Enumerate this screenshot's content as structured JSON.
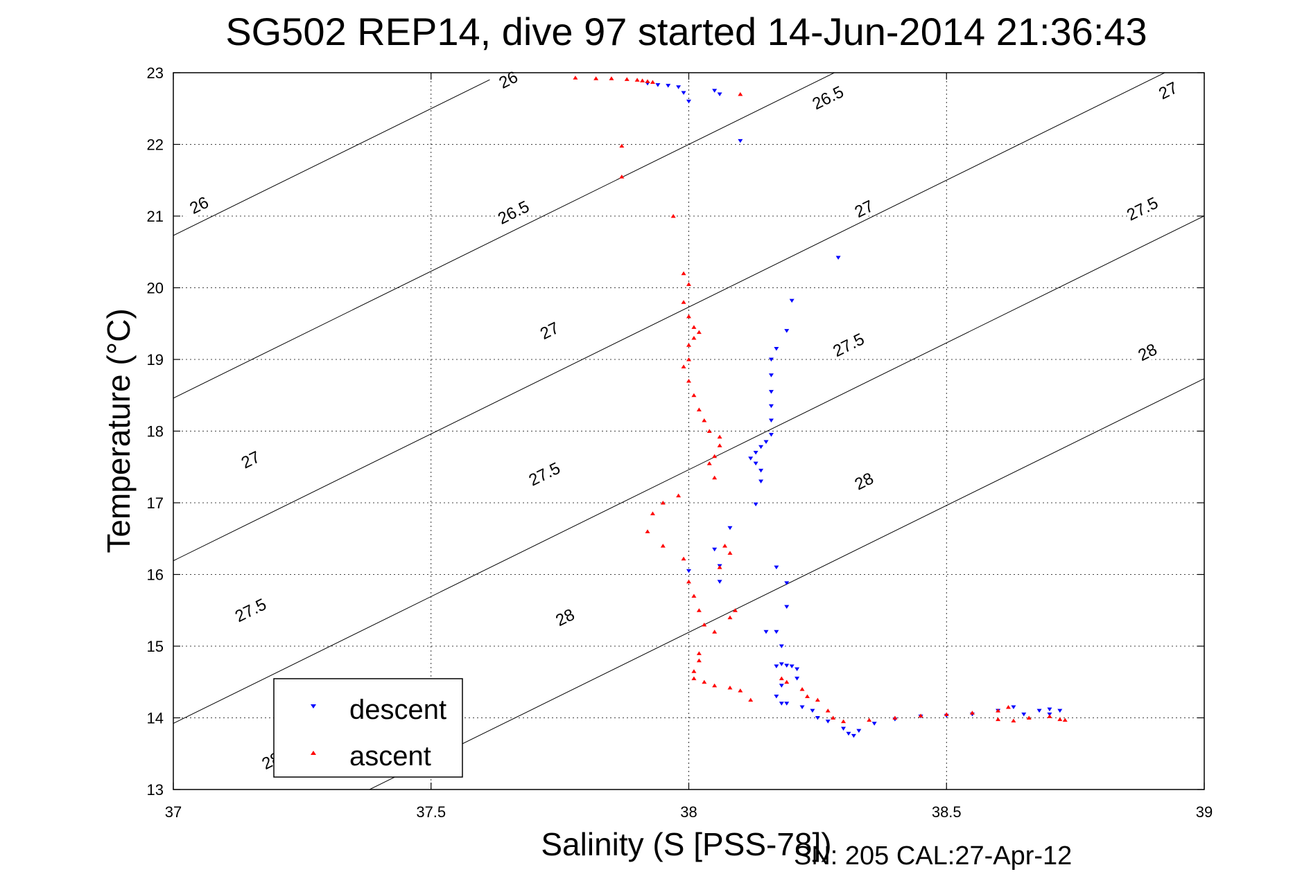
{
  "chart_data": {
    "type": "scatter",
    "title": "SG502 REP14, dive 97 started 14-Jun-2014 21:36:43",
    "xlabel": "Salinity (S [PSS-78])",
    "ylabel": "Temperature (°C)",
    "xlim": [
      37,
      39
    ],
    "ylim": [
      13,
      23
    ],
    "xticks": [
      "37",
      "37.5",
      "38",
      "38.5",
      "39"
    ],
    "yticks": [
      "13",
      "14",
      "15",
      "16",
      "17",
      "18",
      "19",
      "20",
      "21",
      "22",
      "23"
    ],
    "grid": true,
    "legend_position": "bottom-left",
    "isopycnals": [
      {
        "sigma": 26,
        "label": "26",
        "label_positions": [
          [
            37.65,
            22.9
          ],
          [
            37.05,
            21.15
          ]
        ]
      },
      {
        "sigma": 26.5,
        "label": "26.5",
        "label_positions": [
          [
            38.27,
            22.65
          ],
          [
            37.66,
            21.05
          ]
        ]
      },
      {
        "sigma": 27,
        "label": "27",
        "label_positions": [
          [
            38.93,
            22.75
          ],
          [
            38.34,
            21.1
          ],
          [
            37.73,
            19.4
          ],
          [
            37.15,
            17.6
          ]
        ]
      },
      {
        "sigma": 27.5,
        "label": "27.5",
        "label_positions": [
          [
            38.88,
            21.1
          ],
          [
            38.31,
            19.2
          ],
          [
            37.72,
            17.4
          ],
          [
            37.15,
            15.5
          ]
        ]
      },
      {
        "sigma": 28,
        "label": "28",
        "label_positions": [
          [
            38.89,
            19.1
          ],
          [
            38.34,
            17.3
          ],
          [
            37.76,
            15.4
          ],
          [
            37.19,
            13.4
          ]
        ]
      }
    ],
    "series": [
      {
        "name": "descent",
        "color": "#0000ff",
        "marker": "triangle-down",
        "points": [
          [
            37.92,
            22.85
          ],
          [
            37.94,
            22.83
          ],
          [
            37.96,
            22.82
          ],
          [
            37.98,
            22.8
          ],
          [
            37.99,
            22.72
          ],
          [
            38.0,
            22.6
          ],
          [
            38.05,
            22.75
          ],
          [
            38.06,
            22.7
          ],
          [
            38.1,
            22.05
          ],
          [
            38.29,
            20.42
          ],
          [
            38.2,
            19.82
          ],
          [
            38.19,
            19.4
          ],
          [
            38.17,
            19.15
          ],
          [
            38.16,
            19.0
          ],
          [
            38.16,
            18.78
          ],
          [
            38.16,
            18.55
          ],
          [
            38.16,
            18.35
          ],
          [
            38.16,
            18.15
          ],
          [
            38.16,
            17.95
          ],
          [
            38.15,
            17.85
          ],
          [
            38.14,
            17.78
          ],
          [
            38.13,
            17.7
          ],
          [
            38.12,
            17.62
          ],
          [
            38.13,
            17.55
          ],
          [
            38.14,
            17.45
          ],
          [
            38.14,
            17.3
          ],
          [
            38.13,
            16.98
          ],
          [
            38.08,
            16.65
          ],
          [
            38.05,
            16.35
          ],
          [
            38.06,
            16.12
          ],
          [
            38.06,
            15.9
          ],
          [
            38.0,
            16.05
          ],
          [
            38.17,
            16.1
          ],
          [
            38.19,
            15.88
          ],
          [
            38.19,
            15.55
          ],
          [
            38.17,
            15.2
          ],
          [
            38.15,
            15.2
          ],
          [
            38.18,
            15.0
          ],
          [
            38.17,
            14.72
          ],
          [
            38.18,
            14.75
          ],
          [
            38.19,
            14.73
          ],
          [
            38.2,
            14.72
          ],
          [
            38.21,
            14.68
          ],
          [
            38.21,
            14.55
          ],
          [
            38.18,
            14.45
          ],
          [
            38.17,
            14.3
          ],
          [
            38.18,
            14.2
          ],
          [
            38.19,
            14.2
          ],
          [
            38.22,
            14.15
          ],
          [
            38.24,
            14.1
          ],
          [
            38.25,
            14.0
          ],
          [
            38.27,
            13.95
          ],
          [
            38.3,
            13.85
          ],
          [
            38.31,
            13.78
          ],
          [
            38.32,
            13.75
          ],
          [
            38.33,
            13.82
          ],
          [
            38.36,
            13.92
          ],
          [
            38.4,
            13.98
          ],
          [
            38.45,
            14.02
          ],
          [
            38.5,
            14.03
          ],
          [
            38.55,
            14.05
          ],
          [
            38.6,
            14.1
          ],
          [
            38.63,
            14.15
          ],
          [
            38.65,
            14.05
          ],
          [
            38.68,
            14.1
          ],
          [
            38.7,
            14.12
          ],
          [
            38.72,
            14.1
          ],
          [
            38.7,
            14.05
          ]
        ]
      },
      {
        "name": "ascent",
        "color": "#ff0000",
        "marker": "triangle-up",
        "points": [
          [
            37.78,
            22.93
          ],
          [
            37.82,
            22.92
          ],
          [
            37.85,
            22.92
          ],
          [
            37.88,
            22.91
          ],
          [
            37.9,
            22.9
          ],
          [
            37.91,
            22.89
          ],
          [
            37.92,
            22.88
          ],
          [
            37.93,
            22.87
          ],
          [
            38.1,
            22.7
          ],
          [
            37.87,
            21.98
          ],
          [
            37.87,
            21.55
          ],
          [
            37.97,
            21.0
          ],
          [
            37.99,
            20.2
          ],
          [
            38.0,
            20.05
          ],
          [
            37.99,
            19.8
          ],
          [
            38.0,
            19.6
          ],
          [
            38.01,
            19.45
          ],
          [
            38.02,
            19.38
          ],
          [
            38.01,
            19.3
          ],
          [
            38.0,
            19.2
          ],
          [
            38.0,
            19.0
          ],
          [
            37.99,
            18.9
          ],
          [
            38.0,
            18.7
          ],
          [
            38.01,
            18.5
          ],
          [
            38.02,
            18.3
          ],
          [
            38.03,
            18.15
          ],
          [
            38.04,
            18.0
          ],
          [
            38.06,
            17.92
          ],
          [
            38.06,
            17.8
          ],
          [
            38.05,
            17.65
          ],
          [
            38.04,
            17.55
          ],
          [
            38.05,
            17.35
          ],
          [
            37.98,
            17.1
          ],
          [
            37.95,
            17.0
          ],
          [
            37.93,
            16.85
          ],
          [
            37.92,
            16.6
          ],
          [
            37.95,
            16.4
          ],
          [
            38.07,
            16.4
          ],
          [
            38.08,
            16.3
          ],
          [
            38.06,
            16.1
          ],
          [
            37.99,
            16.22
          ],
          [
            38.0,
            15.9
          ],
          [
            38.01,
            15.7
          ],
          [
            38.02,
            15.5
          ],
          [
            38.03,
            15.3
          ],
          [
            38.05,
            15.2
          ],
          [
            38.08,
            15.4
          ],
          [
            38.09,
            15.5
          ],
          [
            38.02,
            14.9
          ],
          [
            38.02,
            14.8
          ],
          [
            38.01,
            14.65
          ],
          [
            38.01,
            14.55
          ],
          [
            38.03,
            14.5
          ],
          [
            38.05,
            14.45
          ],
          [
            38.08,
            14.42
          ],
          [
            38.1,
            14.38
          ],
          [
            38.12,
            14.25
          ],
          [
            38.18,
            14.55
          ],
          [
            38.19,
            14.5
          ],
          [
            38.22,
            14.4
          ],
          [
            38.23,
            14.3
          ],
          [
            38.25,
            14.25
          ],
          [
            38.27,
            14.1
          ],
          [
            38.28,
            14.0
          ],
          [
            38.3,
            13.95
          ],
          [
            38.35,
            13.97
          ],
          [
            38.4,
            14.0
          ],
          [
            38.45,
            14.03
          ],
          [
            38.5,
            14.05
          ],
          [
            38.55,
            14.07
          ],
          [
            38.6,
            14.1
          ],
          [
            38.62,
            14.15
          ],
          [
            38.6,
            13.98
          ],
          [
            38.63,
            13.96
          ],
          [
            38.66,
            14.0
          ],
          [
            38.7,
            14.02
          ],
          [
            38.72,
            13.98
          ],
          [
            38.73,
            13.97
          ]
        ]
      }
    ]
  },
  "footer": "SN: 205  CAL:27-Apr-12"
}
